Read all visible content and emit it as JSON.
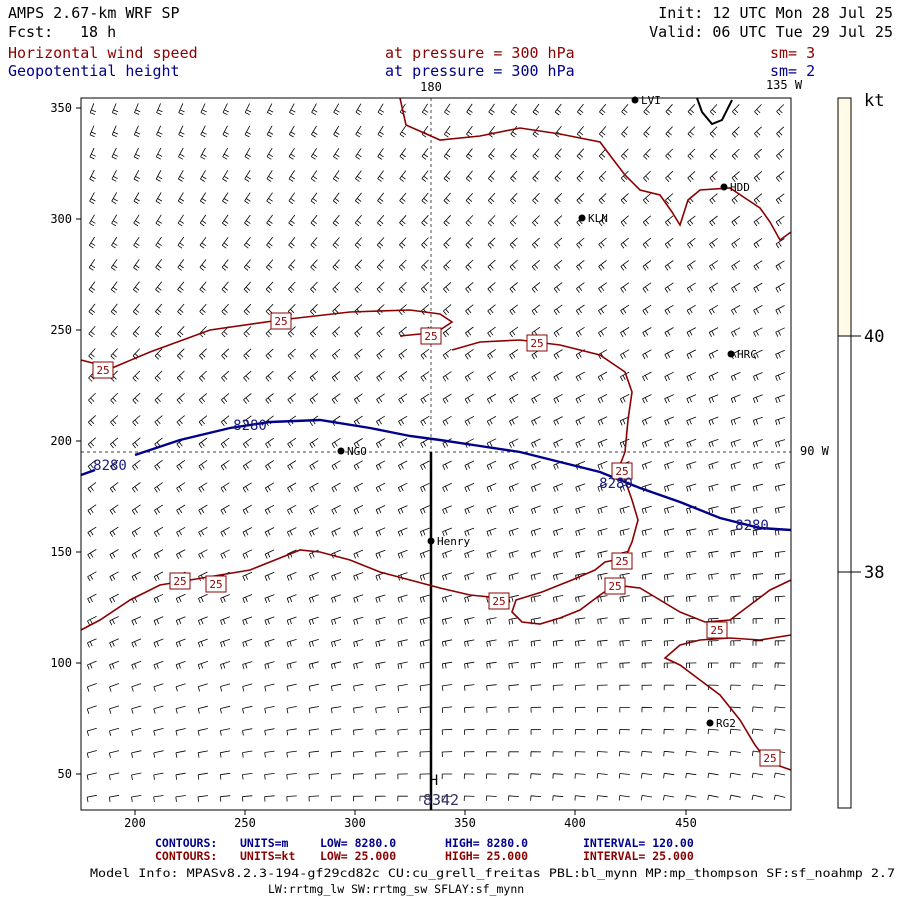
{
  "header": {
    "model": "AMPS 2.67-km WRF SP",
    "fcst_label": "Fcst:",
    "fcst_value": "18 h",
    "init": "Init: 12 UTC Mon 28 Jul 25",
    "valid": "Valid: 06 UTC Tue 29 Jul 25",
    "field1_name": "Horizontal wind speed",
    "field1_level": "at pressure =  300 hPa",
    "field1_sm": "sm= 3",
    "field2_name": "Geopotential height",
    "field2_level": "at pressure =  300 hPa",
    "field2_sm": "sm= 2"
  },
  "map": {
    "x_ticks": [
      "200",
      "250",
      "300",
      "350",
      "400",
      "450"
    ],
    "y_ticks": [
      "350",
      "300",
      "250",
      "200",
      "150",
      "100",
      "50"
    ],
    "meridian_180": "180",
    "meridian_135w": "135 W",
    "meridian_90w": "90 W",
    "stations": [
      "LVI",
      "HDD",
      "KLN",
      "HRC",
      "NGO",
      "Henry",
      "RG2"
    ],
    "wind_labels": [
      "25",
      "25",
      "25",
      "25",
      "25",
      "25",
      "25",
      "25",
      "25",
      "25",
      "25",
      "25"
    ],
    "height_labels": [
      "8280",
      "8280",
      "8280",
      "8280"
    ],
    "high_label": "H",
    "high_value": "8342",
    "colors": {
      "wind_contour": "#8b0000",
      "height_contour": "#00008b",
      "colorbar_fill": "#fffbe6"
    }
  },
  "colorbar": {
    "unit": "kt",
    "labels": [
      "40",
      "38"
    ]
  },
  "footer": {
    "row1": {
      "prefix": "CONTOURS:",
      "units": "UNITS=m",
      "low": "LOW=   8280.0",
      "high": "HIGH=   8280.0",
      "interval": "INTERVAL=    120.00"
    },
    "row2": {
      "prefix": "CONTOURS:",
      "units": "UNITS=kt",
      "low": "LOW=   25.000",
      "high": "HIGH=   25.000",
      "interval": "INTERVAL=    25.000"
    },
    "model_info": "Model Info: MPASv8.2.3-194-gf29cd82c CU:cu_grell_freitas PBL:bl_mynn MP:mp_thompson SF:sf_noahmp 2.7",
    "model_info2": "LW:rrtmg_lw SW:rrtmg_sw SFLAY:sf_mynn"
  }
}
